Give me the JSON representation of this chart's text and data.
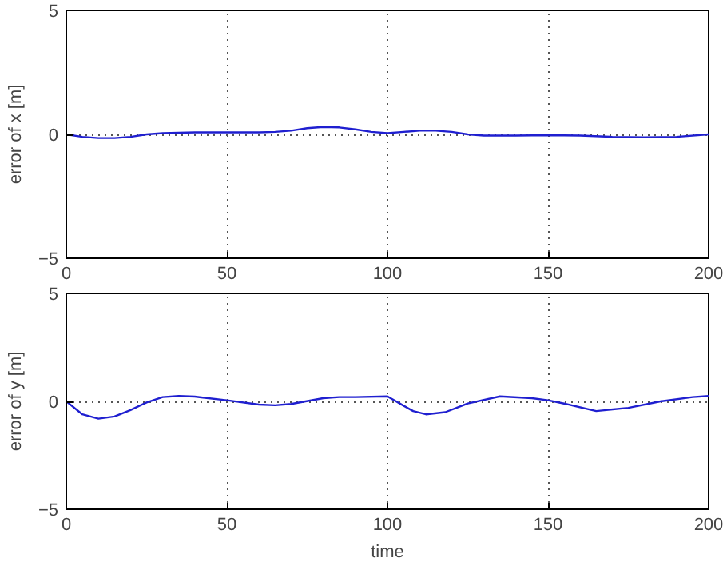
{
  "chart_data": [
    {
      "type": "line",
      "ylabel": "error of x [m]",
      "x": [
        0,
        5,
        10,
        15,
        20,
        25,
        30,
        40,
        50,
        60,
        65,
        70,
        75,
        80,
        85,
        90,
        95,
        100,
        105,
        110,
        115,
        120,
        125,
        130,
        140,
        150,
        160,
        170,
        180,
        190,
        200
      ],
      "series": [
        {
          "color": "#1f1fd0",
          "values": [
            0,
            -0.1,
            -0.15,
            -0.15,
            -0.1,
            0,
            0.05,
            0.08,
            0.08,
            0.08,
            0.1,
            0.15,
            0.25,
            0.3,
            0.28,
            0.2,
            0.1,
            0.05,
            0.1,
            0.15,
            0.15,
            0.1,
            0,
            -0.05,
            -0.05,
            -0.03,
            -0.05,
            -0.1,
            -0.12,
            -0.1,
            0
          ]
        }
      ],
      "xlim": [
        0,
        200
      ],
      "ylim": [
        -5,
        5
      ],
      "xticks": [
        0,
        50,
        100,
        150,
        200
      ],
      "yticks": [
        -5,
        0,
        5
      ],
      "grid": true
    },
    {
      "type": "line",
      "xlabel": "time",
      "ylabel": "error of y [m]",
      "x": [
        0,
        5,
        10,
        15,
        20,
        25,
        30,
        35,
        40,
        50,
        60,
        65,
        70,
        80,
        85,
        90,
        100,
        105,
        108,
        112,
        118,
        125,
        135,
        145,
        150,
        155,
        165,
        175,
        185,
        195,
        200
      ],
      "series": [
        {
          "color": "#1f1fd0",
          "values": [
            0,
            -0.6,
            -0.8,
            -0.7,
            -0.4,
            -0.05,
            0.2,
            0.25,
            0.22,
            0.05,
            -0.15,
            -0.18,
            -0.12,
            0.15,
            0.2,
            0.2,
            0.23,
            -0.2,
            -0.45,
            -0.6,
            -0.5,
            -0.1,
            0.23,
            0.15,
            0.05,
            -0.1,
            -0.45,
            -0.3,
            0,
            0.2,
            0.25
          ]
        }
      ],
      "xlim": [
        0,
        200
      ],
      "ylim": [
        -5,
        5
      ],
      "xticks": [
        0,
        50,
        100,
        150,
        200
      ],
      "yticks": [
        -5,
        0,
        5
      ],
      "grid": true
    }
  ]
}
